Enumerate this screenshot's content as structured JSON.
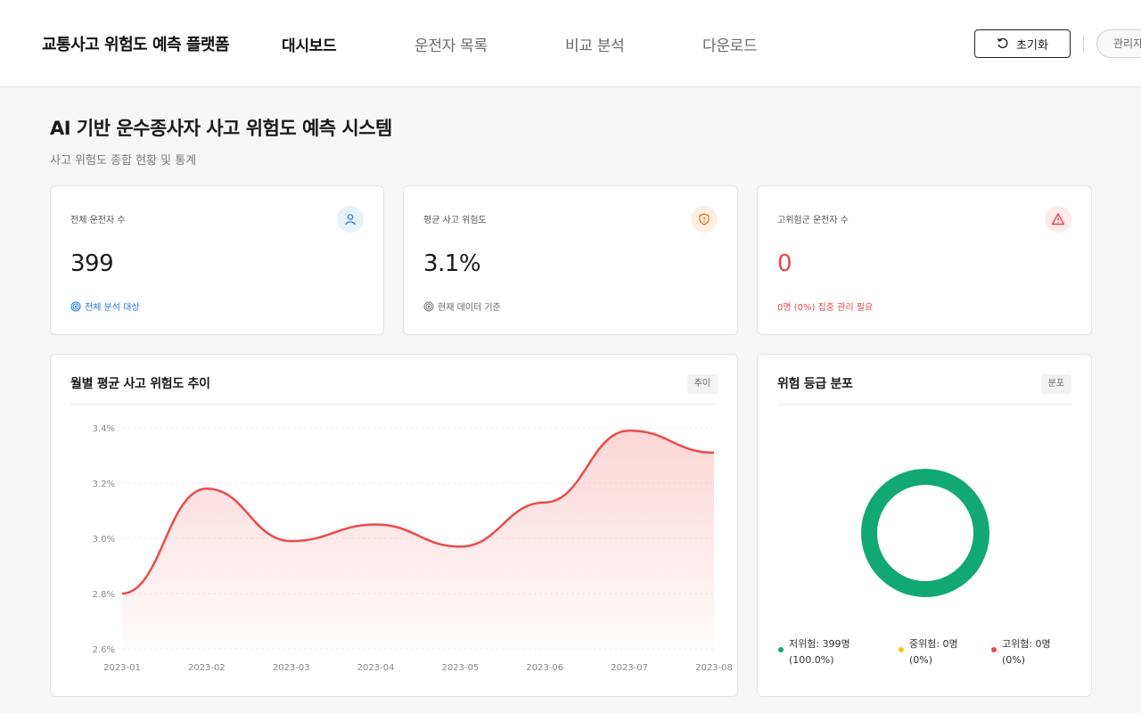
{
  "header": {
    "brand": "교통사고 위험도 예측 플랫폼",
    "nav": [
      {
        "label": "대시보드",
        "active": true
      },
      {
        "label": "운전자 목록",
        "active": false
      },
      {
        "label": "비교 분석",
        "active": false
      },
      {
        "label": "다운로드",
        "active": false
      }
    ],
    "reset_label": "초기화",
    "admin_label": "관리자"
  },
  "page": {
    "title": "AI 기반 운수종사자 사고 위험도 예측 시스템",
    "subtitle": "사고 위험도 종합 현황 및 통계"
  },
  "stats": [
    {
      "label": "전체 운전자 수",
      "value": "399",
      "note": "전체 분석 대상",
      "icon": "user-icon",
      "accent": "#1e7fd6",
      "icon_bg": "#e6f2fc"
    },
    {
      "label": "평균 사고 위험도",
      "value": "3.1%",
      "note": "현재 데이터 기준",
      "icon": "shield-icon",
      "accent": "#e07a14",
      "icon_bg": "#fdf0e2"
    },
    {
      "label": "고위험군 운전자 수",
      "value": "0",
      "note": "0명 (0%) 집중 관리 필요",
      "icon": "warning-icon",
      "accent": "#e54848",
      "icon_bg": "#fdeaea"
    }
  ],
  "trend_panel": {
    "title": "월별 평균 사고 위험도 추이",
    "tag": "추이"
  },
  "dist_panel": {
    "title": "위험 등급 분포",
    "tag": "분포",
    "legend": [
      {
        "line1": "저위험: 399명",
        "line2": "(100.0%)",
        "color": "#12a874"
      },
      {
        "line1": "중위험: 0명",
        "line2": "(0%)",
        "color": "#f2c318"
      },
      {
        "line1": "고위험: 0명",
        "line2": "(0%)",
        "color": "#ec4b4b"
      }
    ]
  },
  "chart_data": [
    {
      "type": "area",
      "title": "월별 평균 사고 위험도 추이",
      "x": [
        "2023-01",
        "2023-02",
        "2023-03",
        "2023-04",
        "2023-05",
        "2023-06",
        "2023-07",
        "2023-08"
      ],
      "series": [
        {
          "values": [
            2.8,
            3.18,
            2.99,
            3.05,
            2.97,
            3.13,
            3.39,
            3.31
          ]
        }
      ],
      "y_ticks": [
        "3.4%",
        "3.2%",
        "3.0%",
        "2.8%",
        "2.6%"
      ],
      "ylim": [
        2.6,
        3.4
      ],
      "line_color": "#ec4b4b",
      "grid": "horizontal dashed"
    },
    {
      "type": "pie",
      "title": "위험 등급 분포",
      "categories": [
        "저위험",
        "중위험",
        "고위험"
      ],
      "values": [
        399,
        0,
        0
      ],
      "colors": [
        "#12a874",
        "#f2c318",
        "#ec4b4b"
      ],
      "donut": true
    }
  ]
}
